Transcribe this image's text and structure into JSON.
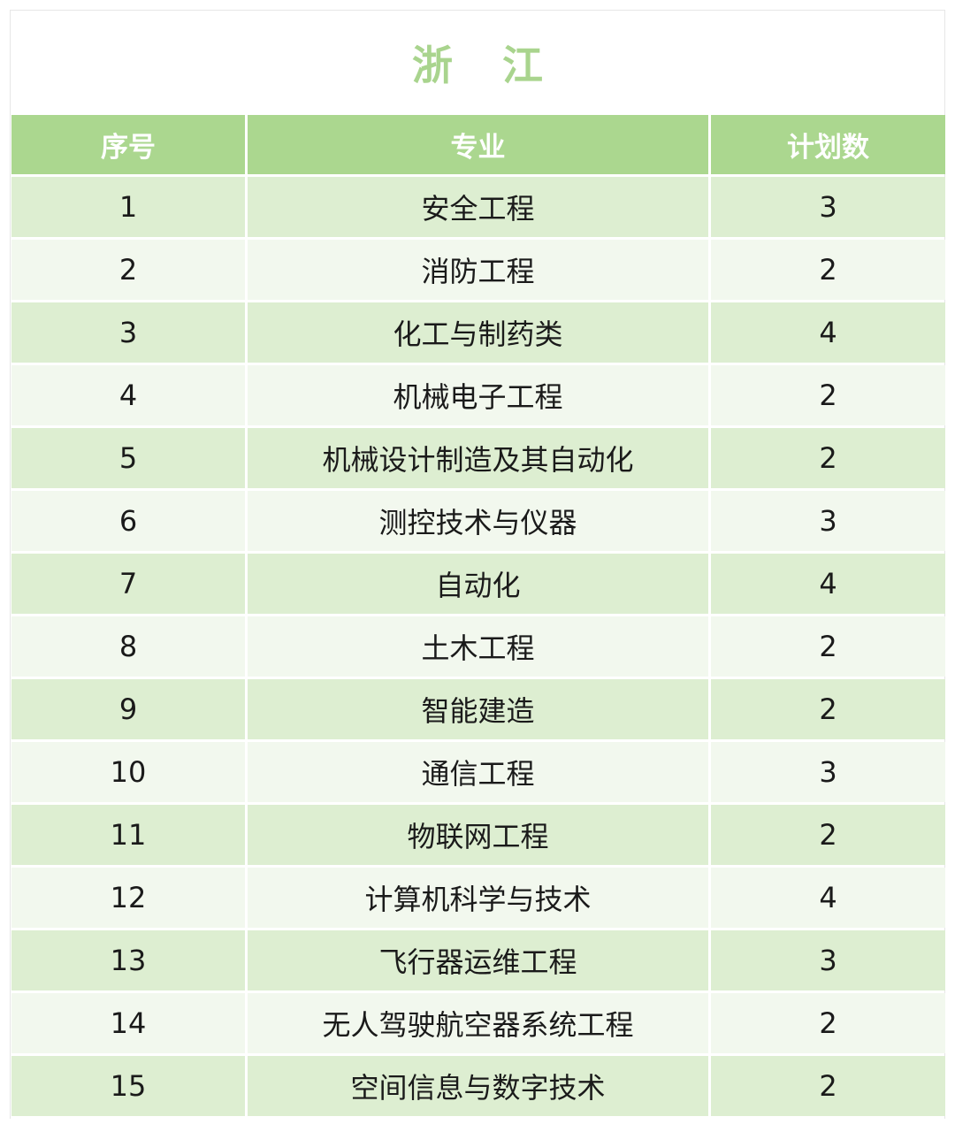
{
  "title": "浙 江",
  "headers": [
    "序号",
    "专业",
    "计划数"
  ],
  "rows": [
    {
      "no": "1",
      "major": "安全工程",
      "plan": "3"
    },
    {
      "no": "2",
      "major": "消防工程",
      "plan": "2"
    },
    {
      "no": "3",
      "major": "化工与制药类",
      "plan": "4"
    },
    {
      "no": "4",
      "major": "机械电子工程",
      "plan": "2"
    },
    {
      "no": "5",
      "major": "机械设计制造及其自动化",
      "plan": "2"
    },
    {
      "no": "6",
      "major": "测控技术与仪器",
      "plan": "3"
    },
    {
      "no": "7",
      "major": "自动化",
      "plan": "4"
    },
    {
      "no": "8",
      "major": "土木工程",
      "plan": "2"
    },
    {
      "no": "9",
      "major": "智能建造",
      "plan": "2"
    },
    {
      "no": "10",
      "major": "通信工程",
      "plan": "3"
    },
    {
      "no": "11",
      "major": "物联网工程",
      "plan": "2"
    },
    {
      "no": "12",
      "major": "计算机科学与技术",
      "plan": "4"
    },
    {
      "no": "13",
      "major": "飞行器运维工程",
      "plan": "3"
    },
    {
      "no": "14",
      "major": "无人驾驶航空器系统工程",
      "plan": "2"
    },
    {
      "no": "15",
      "major": "空间信息与数字技术",
      "plan": "2"
    }
  ],
  "colors": {
    "title": "#a9d48e",
    "header_bg": "#abd78f",
    "row_dark": "#ddeed1",
    "row_light": "#f2f8ee"
  }
}
